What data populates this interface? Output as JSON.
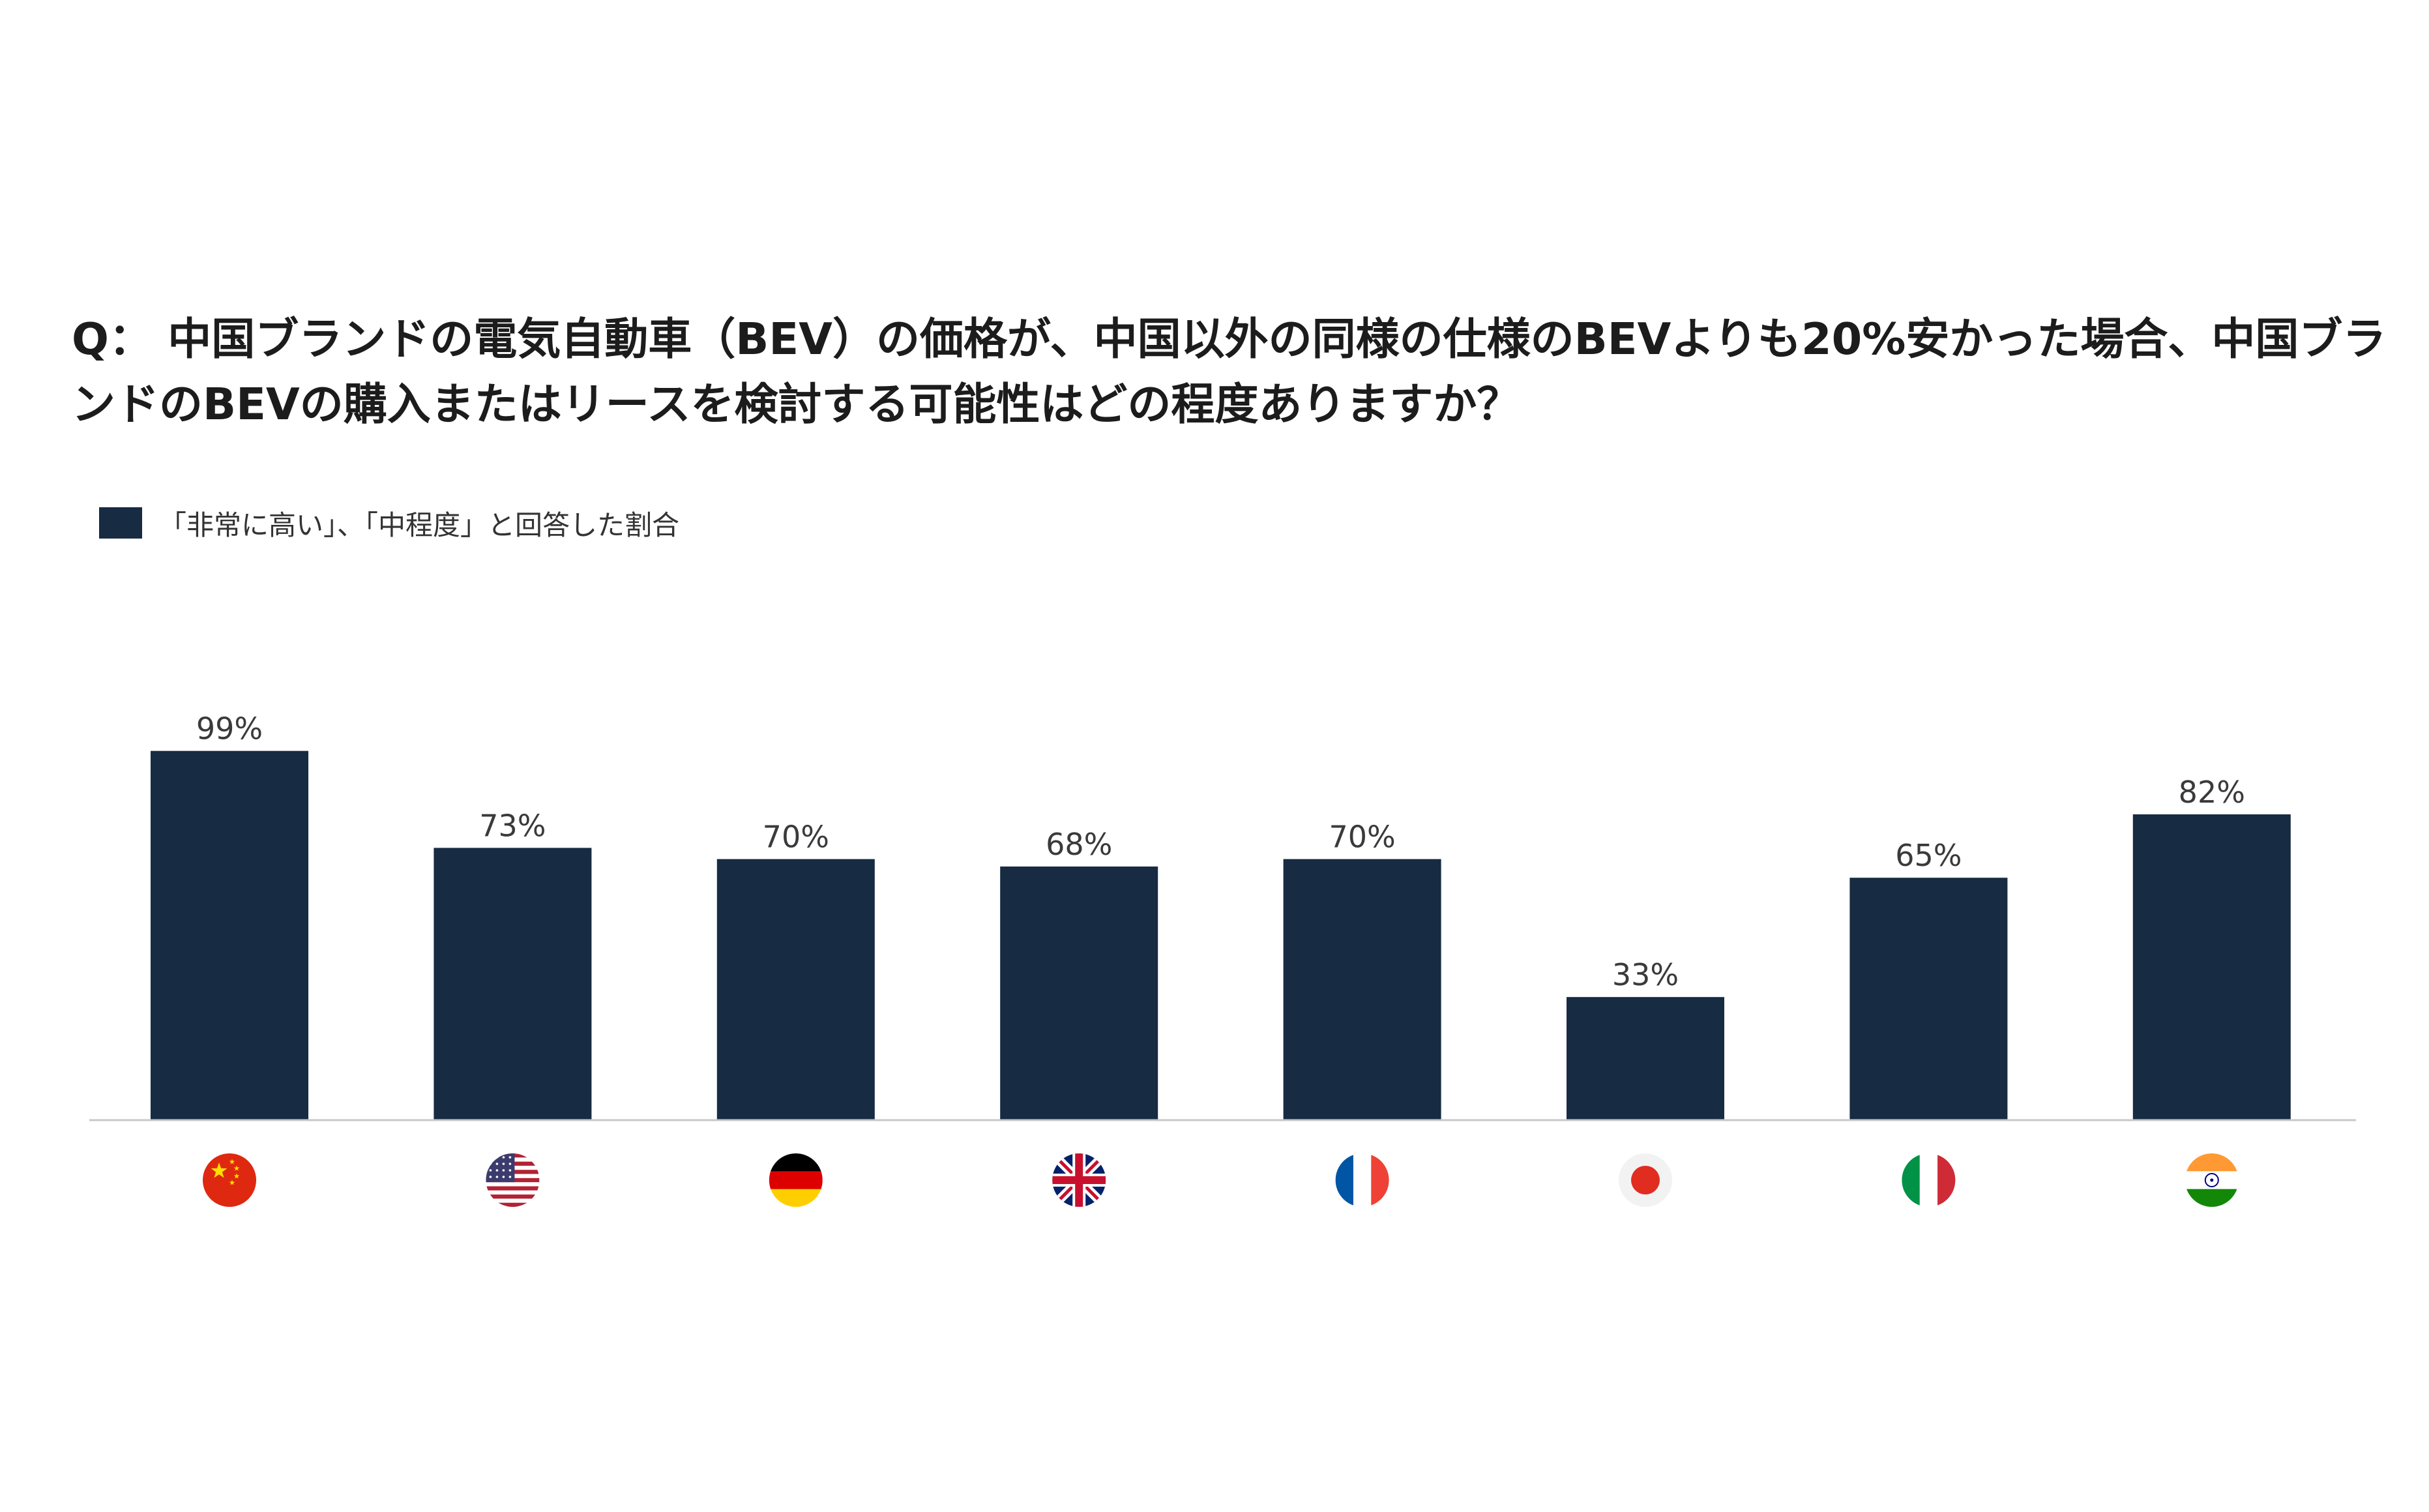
{
  "question": "Q： 中国ブランドの電気自動車（BEV）の価格が、中国以外の同様の仕様のBEVよりも20%安かった場合、中国ブランドのBEVの購入またはリースを検討する可能性はどの程度ありますか？",
  "legend": {
    "label": "「非常に高い」、「中程度」と回答した割合",
    "color": "#172b43"
  },
  "chart_data": {
    "type": "bar",
    "title": "Q： 中国ブランドの電気自動車（BEV）の価格が、中国以外の同様の仕様のBEVよりも20%安かった場合、中国ブランドのBEVの購入またはリースを検討する可能性はどの程度ありますか？",
    "categories": [
      "china-flag",
      "usa-flag",
      "germany-flag",
      "uk-flag",
      "france-flag",
      "japan-flag",
      "italy-flag",
      "india-flag"
    ],
    "series": [
      {
        "name": "「非常に高い」、「中程度」と回答した割合",
        "values": [
          99,
          73,
          70,
          68,
          70,
          33,
          65,
          82
        ]
      }
    ],
    "value_labels": [
      "99%",
      "73%",
      "70%",
      "68%",
      "70%",
      "33%",
      "65%",
      "82%"
    ],
    "ylim": [
      0,
      100
    ],
    "grid": false,
    "legend_position": "top-left",
    "bar_color": "#172b43"
  }
}
